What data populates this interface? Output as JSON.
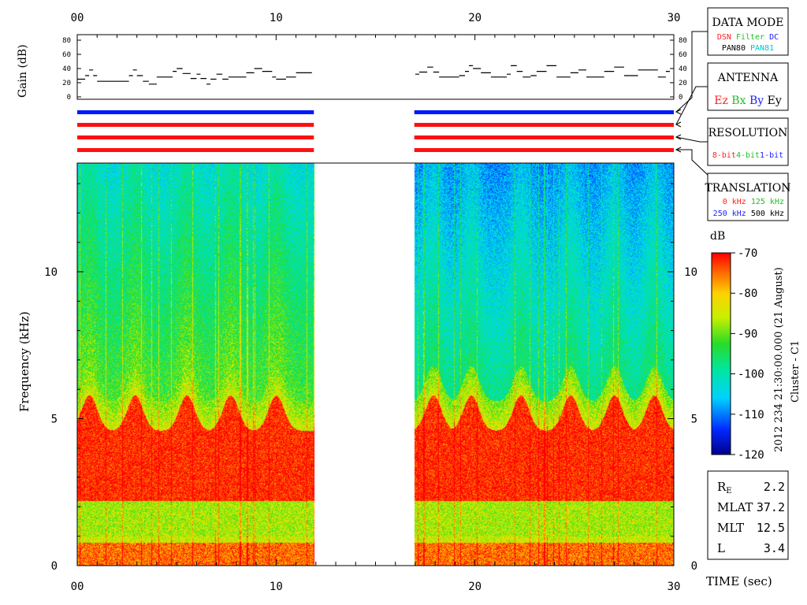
{
  "chart_data": [
    {
      "type": "line",
      "name": "gain",
      "ylabel": "Gain (dB)",
      "x_ticks": [
        "00",
        "10",
        "20",
        "30"
      ],
      "y_ticks": [
        "0",
        "20",
        "40",
        "60",
        "80"
      ],
      "xlim": [
        0,
        30
      ],
      "ylim": [
        0,
        80
      ],
      "segments": [
        {
          "x": [
            0.0,
            0.4,
            0.6,
            0.8,
            1.0,
            1.5,
            2.2,
            2.6,
            2.8,
            3.0,
            3.3,
            3.6,
            4.0,
            4.5,
            4.8,
            5.0,
            5.3,
            5.7,
            6.0,
            6.2,
            6.5,
            6.7,
            7.0,
            7.3,
            7.6,
            8.0,
            8.5,
            8.9,
            9.3,
            9.8,
            10.0,
            10.5,
            11.0,
            11.8
          ],
          "y": [
            25,
            30,
            38,
            30,
            22,
            22,
            22,
            30,
            38,
            30,
            22,
            18,
            28,
            28,
            36,
            40,
            33,
            26,
            32,
            26,
            18,
            25,
            32,
            25,
            28,
            28,
            34,
            40,
            36,
            28,
            25,
            28,
            34,
            34
          ]
        },
        {
          "x": [
            17.0,
            17.2,
            17.6,
            17.9,
            18.2,
            18.7,
            19.2,
            19.5,
            19.7,
            19.9,
            20.3,
            20.8,
            21.2,
            21.6,
            21.8,
            22.1,
            22.4,
            22.8,
            23.1,
            23.6,
            24.1,
            24.5,
            24.8,
            25.2,
            25.6,
            26.0,
            26.5,
            27.0,
            27.5,
            28.2,
            28.8,
            29.2,
            29.6,
            29.8
          ],
          "y": [
            32,
            35,
            42,
            35,
            28,
            28,
            30,
            36,
            44,
            40,
            34,
            28,
            28,
            32,
            44,
            36,
            28,
            30,
            36,
            44,
            28,
            28,
            34,
            38,
            28,
            28,
            36,
            42,
            30,
            38,
            38,
            28,
            36,
            40
          ]
        }
      ]
    },
    {
      "type": "table",
      "name": "status-bars",
      "rows": [
        {
          "color": "#0018ff",
          "segments": [
            [
              0.0,
              11.9
            ],
            [
              16.95,
              30.0
            ]
          ]
        },
        {
          "color": "#ff1010",
          "segments": [
            [
              0.0,
              11.9
            ],
            [
              16.95,
              30.0
            ]
          ]
        },
        {
          "color": "#ff1010",
          "segments": [
            [
              0.0,
              11.9
            ],
            [
              16.95,
              30.0
            ]
          ]
        },
        {
          "color": "#ff1010",
          "segments": [
            [
              0.0,
              11.9
            ],
            [
              16.95,
              30.0
            ]
          ]
        }
      ]
    },
    {
      "type": "heatmap",
      "name": "spectrogram",
      "xlabel": "TIME (sec)",
      "ylabel": "Frequency (kHz)",
      "x_ticks": [
        "00",
        "10",
        "20",
        "30"
      ],
      "y_ticks": [
        "0",
        "5",
        "10"
      ],
      "xlim": [
        0,
        30
      ],
      "ylim": [
        0,
        13.7
      ],
      "data_intervals": [
        [
          0.0,
          11.9
        ],
        [
          16.95,
          30.0
        ]
      ],
      "emission_bands_khz": [
        [
          0.0,
          1.0
        ],
        [
          2.2,
          5.8
        ]
      ],
      "burst_peaks_sec": [
        0.6,
        2.9,
        5.5,
        7.7,
        10.0,
        17.9,
        19.8,
        22.3,
        24.8,
        27.0,
        29.0
      ],
      "colorbar": {
        "label": "dB",
        "min": -120,
        "max": -70,
        "ticks": [
          "-70",
          "-80",
          "-90",
          "-100",
          "-110",
          "-120"
        ]
      }
    }
  ],
  "side_title": "2012 234 21:30:00.000 (21 August)",
  "side_subtitle": "Cluster - C1",
  "panels": {
    "data_mode": {
      "title": "DATA MODE",
      "row1": [
        {
          "t": "DSN",
          "c": "#ff2020"
        },
        {
          "t": "Filter",
          "c": "#20c020"
        },
        {
          "t": "DC",
          "c": "#2020ff"
        }
      ],
      "row2": [
        {
          "t": "PAN80",
          "c": "#000000"
        },
        {
          "t": "PAN81",
          "c": "#00c8c8"
        }
      ]
    },
    "antenna": {
      "title": "ANTENNA",
      "row1": [
        {
          "t": "Ez",
          "c": "#ff2020"
        },
        {
          "t": "Bx",
          "c": "#20c020"
        },
        {
          "t": "By",
          "c": "#2020ff"
        },
        {
          "t": "Ey",
          "c": "#000000"
        }
      ]
    },
    "resolution": {
      "title": "RESOLUTION",
      "row1": [
        {
          "t": "8-bit",
          "c": "#ff2020"
        },
        {
          "t": "4-bit",
          "c": "#20c020"
        },
        {
          "t": "1-bit",
          "c": "#2020ff"
        }
      ]
    },
    "translation": {
      "title": "TRANSLATION",
      "row1": [
        {
          "t": "0 kHz",
          "c": "#ff2020"
        },
        {
          "t": "125 kHz",
          "c": "#20c020"
        }
      ],
      "row2": [
        {
          "t": "250 kHz",
          "c": "#2020ff"
        },
        {
          "t": "500 kHz",
          "c": "#000000"
        }
      ]
    }
  },
  "orbit": [
    {
      "label": "RE",
      "label_main": "R",
      "label_sub": "E",
      "value": "2.2"
    },
    {
      "label": "MLAT",
      "value": "37.2"
    },
    {
      "label": "MLT",
      "value": "12.5"
    },
    {
      "label": "L",
      "value": "3.4"
    }
  ]
}
